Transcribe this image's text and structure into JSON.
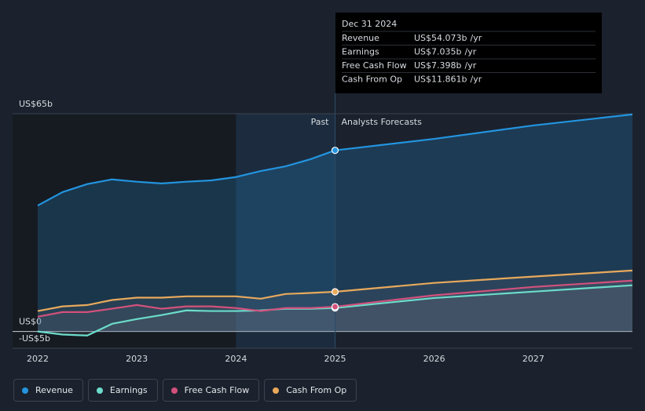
{
  "chart_data": {
    "type": "line",
    "x": [
      2022,
      2022.25,
      2022.5,
      2022.75,
      2023,
      2023.25,
      2023.5,
      2023.75,
      2024,
      2024.25,
      2024.5,
      2024.75,
      2025,
      2026,
      2027,
      2028
    ],
    "xlim": [
      2022,
      2028
    ],
    "xticks": [
      2022,
      2023,
      2024,
      2025,
      2026,
      2027
    ],
    "ylim": [
      -5,
      65
    ],
    "yticks": [
      {
        "value": 65,
        "label": "US$65b"
      },
      {
        "value": 0,
        "label": "US$0"
      },
      {
        "value": -5,
        "label": "-US$5b"
      }
    ],
    "past_label": "Past",
    "forecast_label": "Analysts Forecasts",
    "forecast_start": 2025,
    "highlight_band": [
      2024,
      2025
    ],
    "series": [
      {
        "name": "Revenue",
        "color": "#2394df",
        "values": [
          37.6,
          41.6,
          44,
          45.4,
          44.7,
          44.2,
          44.7,
          45.1,
          46.1,
          47.9,
          49.3,
          51.4,
          54.073,
          57.5,
          61.5,
          64.8
        ],
        "tooltip_value_label": "US$54.073b"
      },
      {
        "name": "Earnings",
        "color": "#6cdccb",
        "values": [
          0,
          -0.9,
          -1.2,
          2.3,
          3.7,
          4.9,
          6.3,
          6.1,
          6.1,
          6.3,
          6.8,
          6.8,
          7.035,
          10,
          11.9,
          13.8
        ],
        "tooltip_value_label": "US$7.035b"
      },
      {
        "name": "Free Cash Flow",
        "color": "#d2517c",
        "values": [
          4.4,
          5.8,
          5.8,
          6.8,
          7.9,
          6.8,
          7.5,
          7.5,
          7.0,
          6.1,
          7.0,
          7.0,
          7.398,
          10.8,
          13.3,
          15.2
        ],
        "tooltip_value_label": "US$7.398b"
      },
      {
        "name": "Cash From Op",
        "color": "#e8a95c",
        "values": [
          6.1,
          7.5,
          7.9,
          9.4,
          10.1,
          10.1,
          10.5,
          10.5,
          10.5,
          9.8,
          11.2,
          11.5,
          11.861,
          14.5,
          16.4,
          18.2
        ],
        "tooltip_value_label": "US$11.861b"
      }
    ],
    "tooltip": {
      "title": "Dec 31 2024",
      "suffix": "/yr"
    }
  }
}
